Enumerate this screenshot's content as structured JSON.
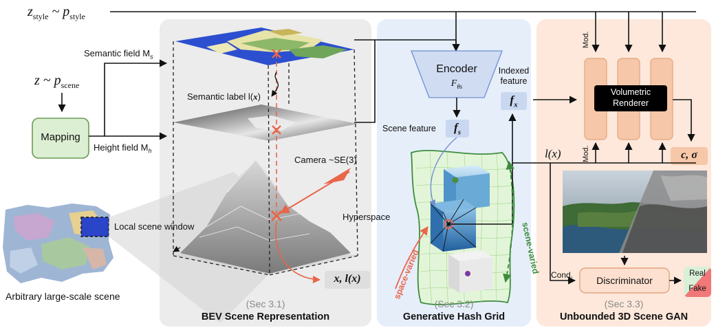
{
  "style_latent": "z",
  "style_sub": "style",
  "style_sim": " ~ p",
  "style_sub2": "style",
  "scene_latent": "z",
  "scene_sim": " ~ p",
  "scene_sub": "scene",
  "mapping_label": "Mapping",
  "semantic_field": "Semantic field M",
  "semantic_field_sub": "s",
  "height_field": "Height field M",
  "height_field_sub": "h",
  "semantic_label": "Semantic label l(",
  "semantic_label_x": "x",
  "semantic_label_end": ")",
  "camera": "Camera ~SE(3)",
  "local_window": "Local scene window",
  "arbitrary_scene": "Arbitrary large-scale scene",
  "hyperspace": "Hyperspace",
  "xl_label": "x, l(x)",
  "encoder_label": "Encoder",
  "encoder_param": "F",
  "encoder_param_sub": "θs",
  "indexed_feature_1": "Indexed",
  "indexed_feature_2": "feature",
  "fx": "f",
  "fx_sub": "x",
  "scene_feature": "Scene feature",
  "fs": "f",
  "fs_sub": "s",
  "space_varied": "space-varied",
  "scene_varied": "scene-varied",
  "mod_top": "Mod.",
  "mod_bottom": "Mod.",
  "renderer_1": "Volumetric",
  "renderer_2": "Renderer",
  "lx_right": "l(x)",
  "c_sigma": "c, σ",
  "cond": "Cond.",
  "discriminator": "Discriminator",
  "real": "Real",
  "fake": "Fake",
  "sec1": "(Sec 3.1)",
  "title1": "BEV Scene Representation",
  "sec2": "(Sec 3.2)",
  "title2": "Generative Hash Grid",
  "sec3": "(Sec 3.3)",
  "title3": "Unbounded 3D Scene GAN",
  "colors": {
    "panel_gray": "#ececec",
    "panel_blue": "#e6eefa",
    "panel_orange": "#fde8db",
    "mapping_fill": "#dcefd2",
    "mapping_stroke": "#6a9a55",
    "encoder_fill": "#cfdcf2",
    "feature_fill": "#c9d8f0",
    "mlp_fill": "#f6c7a8",
    "arrow_red": "#e8664a",
    "arrow_green": "#3d8c3d"
  }
}
